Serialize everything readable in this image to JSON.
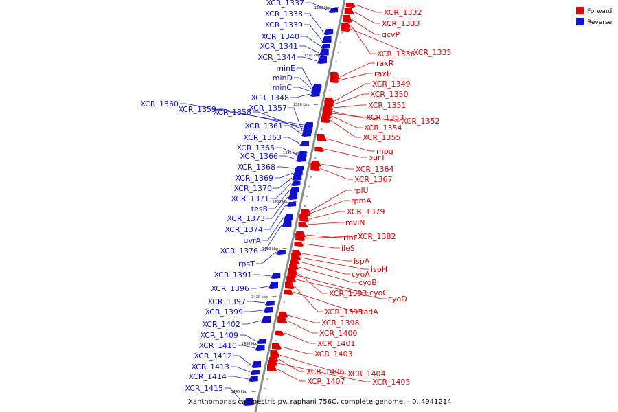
{
  "caption": "Xanthomonas campestris pv. raphani 756C, complete genome. - 0..4941214",
  "legend": [
    {
      "label": "Forward",
      "color": "#ee0000"
    },
    {
      "label": "Reverse",
      "color": "#1111ee"
    }
  ],
  "colors": {
    "forward": "#dd0000",
    "reverse": "#1111cc",
    "backbone": "#888888"
  },
  "ticks": [
    "1360 kbp",
    "1370 kbp",
    "1380 kbp",
    "1390 kbp",
    "1400 kbp",
    "1410 kbp",
    "1420 kbp",
    "1430 kbp",
    "1440 kbp"
  ],
  "reverse_genes": [
    "XCR_1337",
    "XCR_1338",
    "XCR_1339",
    "XCR_1340",
    "XCR_1341",
    "XCR_1344",
    "minE",
    "minD",
    "minC",
    "XCR_1348",
    "XCR_1360",
    "XCR_1359",
    "XCR_1358",
    "XCR_1357",
    "XCR_1361",
    "XCR_1363",
    "XCR_1365",
    "XCR_1366",
    "XCR_1368",
    "XCR_1369",
    "XCR_1370",
    "XCR_1371",
    "tesB",
    "XCR_1373",
    "XCR_1374",
    "uvrA",
    "XCR_1376",
    "rpsT",
    "XCR_1391",
    "XCR_1396",
    "XCR_1397",
    "XCR_1399",
    "XCR_1402",
    "XCR_1409",
    "XCR_1410",
    "XCR_1412",
    "XCR_1413",
    "XCR_1414",
    "XCR_1415"
  ],
  "forward_genes": [
    "XCR_1332",
    "XCR_1333",
    "gcvP",
    "XCR_1336",
    "XCR_1335",
    "raxR",
    "raxH",
    "XCR_1349",
    "XCR_1350",
    "XCR_1351",
    "XCR_1353",
    "XCR_1352",
    "XCR_1354",
    "XCR_1355",
    "mpg",
    "purT",
    "XCR_1364",
    "XCR_1367",
    "rplU",
    "rpmA",
    "XCR_1379",
    "mviN",
    "ribF",
    "XCR_1382",
    "ileS",
    "ispA",
    "ispH",
    "cyoA",
    "cyoB",
    "XCR_1393",
    "cyoC",
    "cyoD",
    "XCR_1395",
    "radA",
    "XCR_1398",
    "XCR_1400",
    "XCR_1401",
    "XCR_1403",
    "XCR_1404",
    "XCR_1406",
    "XCR_1405",
    "XCR_1407"
  ]
}
